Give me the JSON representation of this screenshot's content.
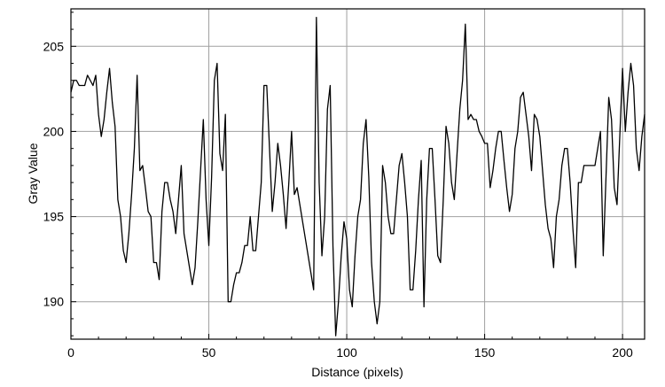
{
  "chart_data": {
    "type": "line",
    "xlabel": "Distance (pixels)",
    "ylabel": "Gray Value",
    "xlim": [
      0,
      208
    ],
    "ylim": [
      187.8,
      207.2
    ],
    "xticks": [
      0,
      50,
      100,
      150,
      200
    ],
    "yticks": [
      190,
      195,
      200,
      205
    ],
    "grid": true,
    "series": [
      {
        "x": [
          0,
          1,
          2,
          3,
          4,
          5,
          6,
          7,
          8,
          9,
          10,
          11,
          12,
          13,
          14,
          15,
          16,
          17,
          18,
          19,
          20,
          21,
          22,
          23,
          24,
          25,
          26,
          27,
          28,
          29,
          30,
          31,
          32,
          33,
          34,
          35,
          36,
          37,
          38,
          39,
          40,
          41,
          42,
          43,
          44,
          45,
          46,
          47,
          48,
          49,
          50,
          51,
          52,
          53,
          54,
          55,
          56,
          57,
          58,
          59,
          60,
          61,
          62,
          63,
          64,
          65,
          66,
          67,
          68,
          69,
          70,
          71,
          72,
          73,
          74,
          75,
          76,
          77,
          78,
          79,
          80,
          81,
          82,
          83,
          84,
          85,
          86,
          87,
          88,
          89,
          90,
          91,
          92,
          93,
          94,
          95,
          96,
          97,
          98,
          99,
          100,
          101,
          102,
          103,
          104,
          105,
          106,
          107,
          108,
          109,
          110,
          111,
          112,
          113,
          114,
          115,
          116,
          117,
          118,
          119,
          120,
          121,
          122,
          123,
          124,
          125,
          126,
          127,
          128,
          129,
          130,
          131,
          132,
          133,
          134,
          135,
          136,
          137,
          138,
          139,
          140,
          141,
          142,
          143,
          144,
          145,
          146,
          147,
          148,
          149,
          150,
          151,
          152,
          153,
          154,
          155,
          156,
          157,
          158,
          159,
          160,
          161,
          162,
          163,
          164,
          165,
          166,
          167,
          168,
          169,
          170,
          171,
          172,
          173,
          174,
          175,
          176,
          177,
          178,
          179,
          180,
          181,
          182,
          183,
          184,
          185,
          186,
          187,
          188,
          189,
          190,
          191,
          192,
          193,
          194,
          195,
          196,
          197,
          198,
          199,
          200,
          201,
          202,
          203,
          204,
          205,
          206,
          207,
          208
        ],
        "y": [
          202.3,
          203.0,
          203.0,
          202.7,
          202.7,
          202.7,
          203.3,
          203.0,
          202.7,
          203.3,
          201.0,
          199.7,
          200.7,
          202.3,
          203.7,
          201.7,
          200.3,
          196.0,
          195.0,
          193.0,
          192.3,
          194.0,
          196.3,
          199.0,
          203.3,
          197.7,
          198.0,
          196.7,
          195.3,
          195.0,
          192.3,
          192.3,
          191.3,
          195.3,
          197.0,
          197.0,
          196.0,
          195.3,
          194.0,
          196.0,
          198.0,
          194.0,
          193.0,
          192.0,
          191.0,
          192.0,
          194.7,
          197.7,
          200.7,
          196.0,
          193.3,
          197.3,
          203.0,
          204.0,
          198.7,
          197.7,
          201.0,
          190.0,
          190.0,
          191.0,
          191.7,
          191.7,
          192.3,
          193.3,
          193.3,
          195.0,
          193.0,
          193.0,
          195.0,
          197.0,
          202.7,
          202.7,
          199.0,
          195.3,
          197.0,
          199.3,
          198.0,
          196.3,
          194.3,
          197.0,
          200.0,
          196.3,
          196.7,
          195.7,
          194.7,
          193.7,
          192.7,
          191.7,
          190.7,
          206.7,
          197.0,
          192.7,
          195.0,
          201.3,
          202.7,
          193.3,
          188.0,
          190.0,
          192.7,
          194.7,
          193.7,
          190.7,
          189.7,
          192.7,
          195.0,
          196.0,
          199.3,
          200.7,
          197.3,
          192.3,
          190.0,
          188.7,
          190.0,
          198.0,
          197.0,
          195.0,
          194.0,
          194.0,
          196.0,
          198.0,
          198.7,
          197.0,
          195.0,
          190.7,
          190.7,
          193.0,
          196.0,
          198.3,
          189.7,
          196.0,
          199.0,
          199.0,
          196.0,
          192.7,
          192.3,
          196.0,
          200.3,
          199.3,
          197.0,
          196.0,
          198.7,
          201.3,
          203.0,
          206.3,
          200.7,
          201.0,
          200.7,
          200.7,
          200.0,
          199.7,
          199.3,
          199.3,
          196.7,
          197.7,
          199.0,
          200.0,
          200.0,
          198.3,
          196.7,
          195.3,
          196.3,
          199.0,
          200.0,
          202.0,
          202.3,
          201.0,
          199.7,
          197.7,
          201.0,
          200.7,
          199.7,
          197.7,
          195.7,
          194.3,
          193.7,
          192.0,
          195.0,
          196.0,
          198.0,
          199.0,
          199.0,
          197.0,
          194.3,
          192.0,
          197.0,
          197.0,
          198.0,
          198.0,
          198.0,
          198.0,
          198.0,
          199.0,
          200.0,
          192.7,
          197.3,
          202.0,
          200.7,
          196.7,
          195.7,
          199.7,
          203.7,
          200.0,
          202.3,
          204.0,
          202.7,
          199.0,
          197.7,
          199.7,
          201.0
        ]
      }
    ]
  }
}
